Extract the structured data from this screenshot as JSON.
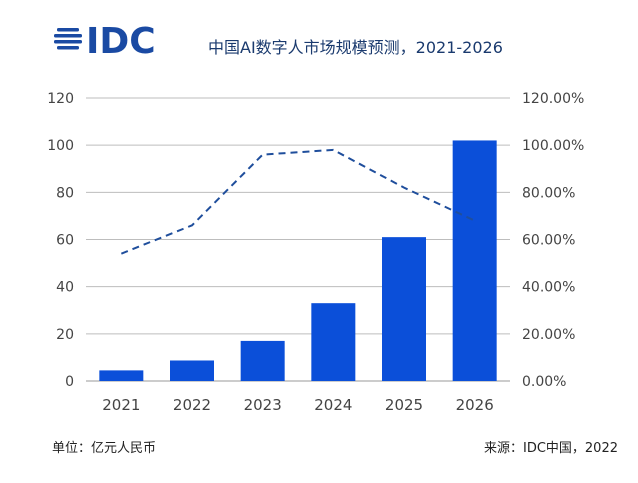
{
  "header": {
    "logo_text": "IDC",
    "title": "中国AI数字人市场规模预测，2021-2026"
  },
  "footer": {
    "unit": "单位：亿元人民币",
    "source": "来源：IDC中国，2022"
  },
  "colors": {
    "bar": "#0b4fd9",
    "line": "#1f4e9c",
    "grid": "#bdbdbd",
    "logo": "#1a4aa3"
  },
  "chart_data": {
    "type": "bar",
    "categories": [
      "2021",
      "2022",
      "2023",
      "2024",
      "2025",
      "2026"
    ],
    "series": [
      {
        "type": "bar",
        "axis": "left",
        "values": [
          4.5,
          8.7,
          17.0,
          33.0,
          61.0,
          102.0
        ]
      },
      {
        "type": "line",
        "axis": "right",
        "style": "dashed",
        "values": [
          54,
          66,
          96,
          98,
          82,
          68
        ]
      }
    ],
    "ylim_left": [
      0,
      120
    ],
    "ylim_right": [
      0,
      120
    ],
    "yticks_left": [
      "0",
      "20",
      "40",
      "60",
      "80",
      "100",
      "120"
    ],
    "yticks_right": [
      "0.00%",
      "20.00%",
      "40.00%",
      "60.00%",
      "80.00%",
      "100.00%",
      "120.00%"
    ],
    "grid": true
  }
}
